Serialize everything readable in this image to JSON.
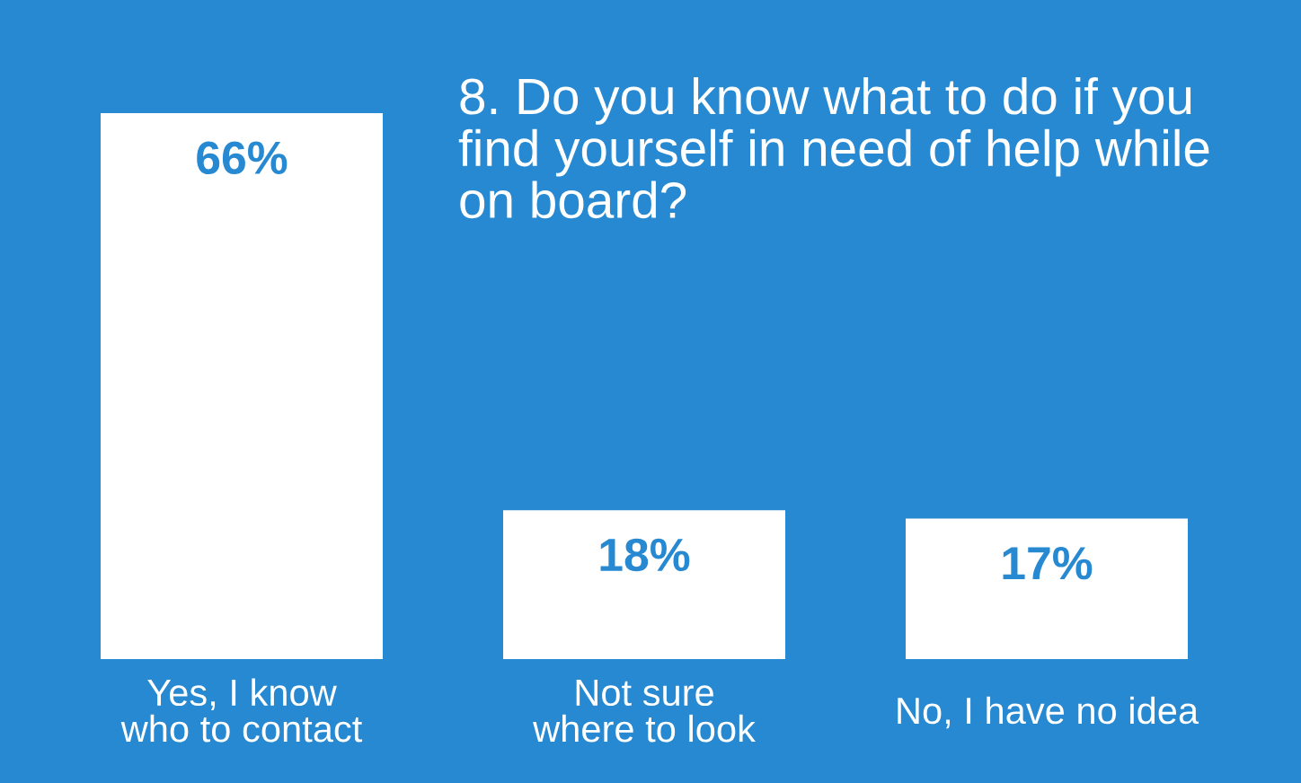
{
  "chart_data": {
    "type": "bar",
    "title": "8. Do you know what to do if you\nfind yourself in need of help while\non board?",
    "categories": [
      "Yes, I know\nwho to contact",
      "Not sure\nwhere to look",
      "No, I have no idea"
    ],
    "values": [
      66,
      18,
      17
    ],
    "value_labels": [
      "66%",
      "18%",
      "17%"
    ],
    "color": "#ffffff",
    "tick_labels": "x"
  }
}
